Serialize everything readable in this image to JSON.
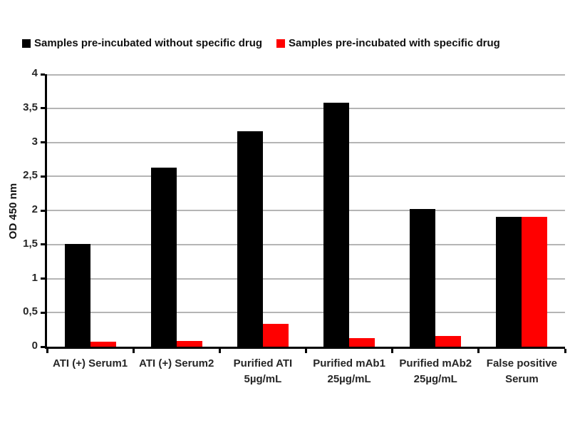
{
  "page": {
    "background": "#ffffff"
  },
  "legend": {
    "items": [
      {
        "label": "Samples pre-incubated without specific drug",
        "color": "#000000"
      },
      {
        "label": "Samples pre-incubated with specific drug",
        "color": "#ff0000"
      }
    ]
  },
  "chart_data": {
    "type": "bar",
    "title": "",
    "xlabel": "",
    "ylabel": "OD 450 nm",
    "ylim": [
      0,
      4
    ],
    "ytick_step": 0.5,
    "ytick_labels": [
      "0",
      "0,5",
      "1",
      "1,5",
      "2",
      "2,5",
      "3",
      "3,5",
      "4"
    ],
    "grid": true,
    "grid_color": "#b5b5b5",
    "axis_color": "#000000",
    "legend_position": "top",
    "categories": [
      "ATI (+) Serum1",
      "ATI (+) Serum2",
      "Purified ATI 5µg/mL",
      "Purified mAb1 25µg/mL",
      "Purified mAb2 25µg/mL",
      "False positive Serum"
    ],
    "category_label_lines": [
      [
        "ATI (+) Serum1"
      ],
      [
        "ATI (+) Serum2"
      ],
      [
        "Purified ATI",
        "5µg/mL"
      ],
      [
        "Purified mAb1",
        "25µg/mL"
      ],
      [
        "Purified mAb2",
        "25µg/mL"
      ],
      [
        "False positive",
        "Serum"
      ]
    ],
    "series": [
      {
        "name": "Samples pre-incubated without specific drug",
        "color": "#000000",
        "values": [
          1.51,
          2.63,
          3.16,
          3.58,
          2.02,
          1.91
        ]
      },
      {
        "name": "Samples pre-incubated with specific drug",
        "color": "#ff0000",
        "values": [
          0.07,
          0.08,
          0.34,
          0.13,
          0.16,
          1.91
        ]
      }
    ]
  }
}
